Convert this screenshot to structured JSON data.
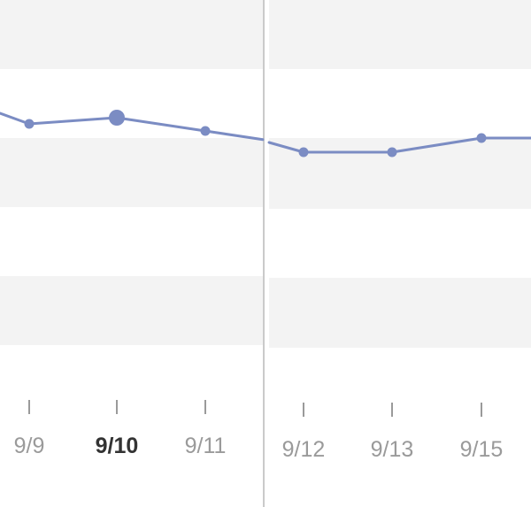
{
  "chart_data": {
    "type": "line",
    "panels": [
      {
        "categories": [
          "9/9",
          "9/10",
          "9/11"
        ],
        "values": [
          140,
          133,
          148
        ],
        "selected_category": "9/10"
      },
      {
        "categories": [
          "9/12",
          "9/13",
          "9/15"
        ],
        "values": [
          172,
          172,
          156
        ]
      }
    ],
    "series_color": "#7b8cc3",
    "grid": "alternating-bands",
    "band_color": "#f3f3f3",
    "tick_color": "#9a9a9a",
    "label_color": "#9a9a9a",
    "selected_label_color": "#333333",
    "divider_color": "#b8b8b8"
  }
}
